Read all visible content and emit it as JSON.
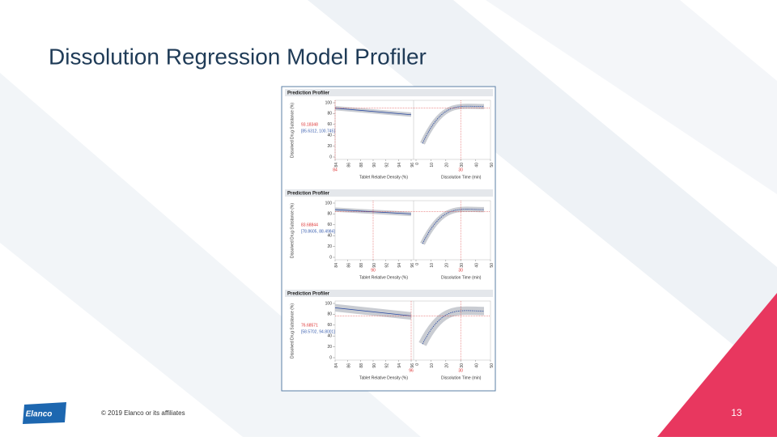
{
  "header": {
    "title": "Dissolution Regression Model Profiler"
  },
  "profilers": [
    {
      "title": "Prediction Profiler",
      "y_label": "Dissolved Drug Substance (%)",
      "prediction": "93.18348",
      "interval": "[85.6312, 100.745]",
      "density_label": "Tablet Relative Density (%)",
      "density_value": 84,
      "time_label": "Dissolution Time (min)",
      "time_value": 30,
      "y_ticks": [
        0,
        20,
        40,
        60,
        80,
        100
      ],
      "density_ticks": [
        84,
        86,
        88,
        90,
        92,
        94,
        96
      ],
      "time_ticks": [
        0,
        10,
        20,
        30,
        40,
        50
      ]
    },
    {
      "title": "Prediction Profiler",
      "y_label": "Dissolved Drug Substance (%)",
      "prediction": "83.68844",
      "interval": "[78.8605, 88.4984]",
      "density_label": "Tablet Relative Density (%)",
      "density_value": 90,
      "time_label": "Dissolution Time (min)",
      "time_value": 30,
      "y_ticks": [
        0,
        20,
        40,
        60,
        80,
        100
      ],
      "density_ticks": [
        84,
        86,
        88,
        90,
        92,
        94,
        96
      ],
      "time_ticks": [
        0,
        10,
        20,
        30,
        40,
        50
      ]
    },
    {
      "title": "Prediction Profiler",
      "y_label": "Dissolved Drug Substance (%)",
      "prediction": "76.68571",
      "interval": "[58.5702, 94.8001]",
      "density_label": "Tablet Relative Density (%)",
      "density_value": 96,
      "time_label": "Dissolution Time (min)",
      "time_value": 30,
      "y_ticks": [
        0,
        20,
        40,
        60,
        80,
        100
      ],
      "density_ticks": [
        84,
        86,
        88,
        90,
        92,
        94,
        96
      ],
      "time_ticks": [
        0,
        10,
        20,
        30,
        40,
        50
      ]
    }
  ],
  "footer": {
    "logo": "Elanco",
    "copyright": "© 2019 Elanco or its affiliates",
    "page_number": "13"
  }
}
